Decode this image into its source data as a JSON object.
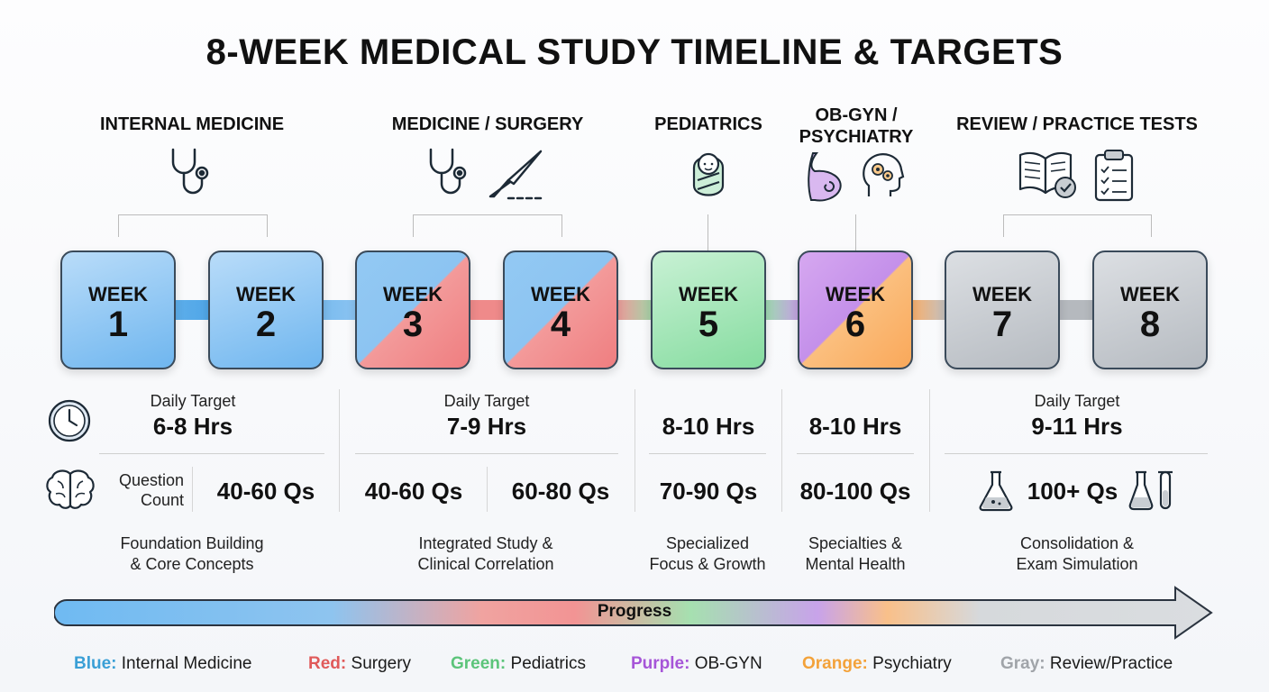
{
  "title": "8-WEEK MEDICAL STUDY TIMELINE & TARGETS",
  "phases": [
    {
      "label": "INTERNAL MEDICINE"
    },
    {
      "label": "MEDICINE / SURGERY"
    },
    {
      "label": "PEDIATRICS"
    },
    {
      "label_line1": "OB-GYN /",
      "label_line2": "PSYCHIATRY"
    },
    {
      "label": "REVIEW / PRACTICE TESTS"
    }
  ],
  "weeks": [
    {
      "label": "WEEK",
      "number": "1"
    },
    {
      "label": "WEEK",
      "number": "2"
    },
    {
      "label": "WEEK",
      "number": "3"
    },
    {
      "label": "WEEK",
      "number": "4"
    },
    {
      "label": "WEEK",
      "number": "5"
    },
    {
      "label": "WEEK",
      "number": "6"
    },
    {
      "label": "WEEK",
      "number": "7"
    },
    {
      "label": "WEEK",
      "number": "8"
    }
  ],
  "targets": {
    "daily_target_label": "Daily Target",
    "question_count_line1": "Question",
    "question_count_line2": "Count",
    "hours": [
      "6-8 Hrs",
      "7-9 Hrs",
      "8-10 Hrs",
      "8-10 Hrs",
      "9-11 Hrs"
    ],
    "questions": [
      "40-60 Qs",
      "40-60 Qs",
      "60-80 Qs",
      "70-90 Qs",
      "80-100 Qs",
      "100+ Qs"
    ]
  },
  "descriptions": [
    {
      "line1": "Foundation Building",
      "line2": "& Core Concepts"
    },
    {
      "line1": "Integrated Study &",
      "line2": "Clinical Correlation"
    },
    {
      "line1": "Specialized",
      "line2": "Focus & Growth"
    },
    {
      "line1": "Specialties &",
      "line2": "Mental Health"
    },
    {
      "line1": "Consolidation &",
      "line2": "Exam Simulation"
    }
  ],
  "progress_label": "Progress",
  "legend": [
    {
      "key": "Blue:",
      "value": "Internal Medicine",
      "color": "#3a9fd6"
    },
    {
      "key": "Red:",
      "value": "Surgery",
      "color": "#e05a5a"
    },
    {
      "key": "Green:",
      "value": "Pediatrics",
      "color": "#5cc47a"
    },
    {
      "key": "Purple:",
      "value": "OB-GYN",
      "color": "#a655d8"
    },
    {
      "key": "Orange:",
      "value": "Psychiatry",
      "color": "#f3a23a"
    },
    {
      "key": "Gray:",
      "value": "Review/Practice",
      "color": "#a0a4a9"
    }
  ],
  "icons": [
    "stethoscope-icon",
    "scalpel-icon",
    "baby-icon",
    "pregnancy-icon",
    "brain-gears-icon",
    "book-check-icon",
    "clipboard-icon",
    "clock-icon",
    "brain-icon",
    "flask-icon",
    "test-tubes-icon"
  ]
}
